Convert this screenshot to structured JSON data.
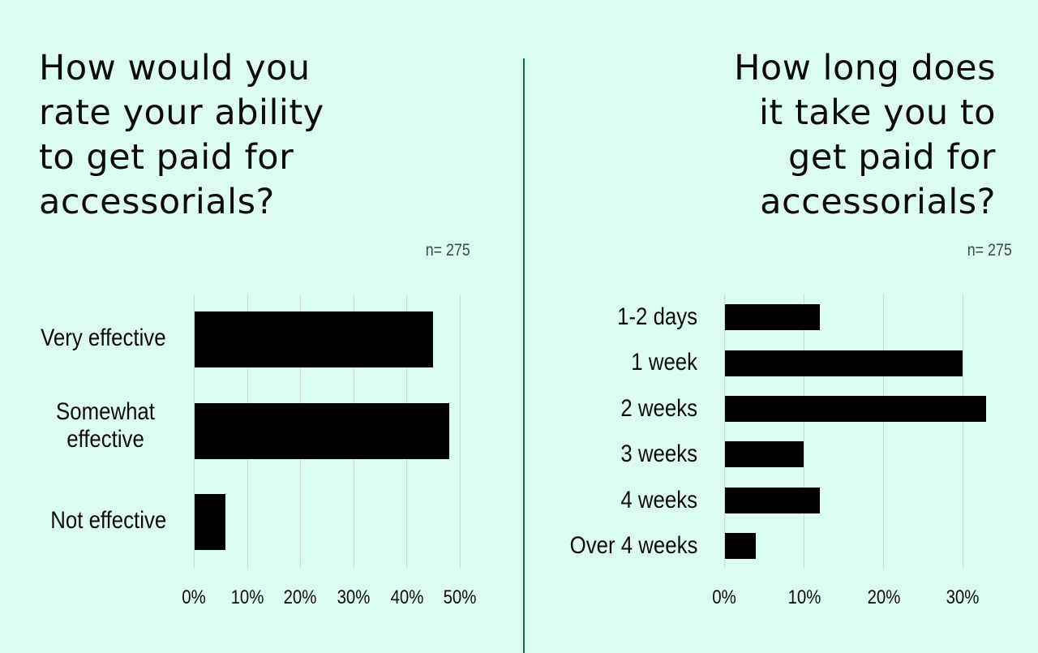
{
  "colors": {
    "background": "#dcfcf1",
    "bar": "#000000",
    "divider": "#17694c",
    "gridline": "#cdd8d4",
    "text": "#0b0b0b",
    "sample_size_text": "#3c4a45"
  },
  "left": {
    "title_lines": [
      "How would you",
      "rate your ability",
      "to get paid for",
      "accessorials?"
    ],
    "sample_size": "n= 275",
    "tick_labels": [
      "0%",
      "10%",
      "20%",
      "30%",
      "40%",
      "50%"
    ],
    "categories": [
      {
        "label": "Very effective"
      },
      {
        "label_line1": "Somewhat",
        "label_line2": "effective"
      },
      {
        "label": "Not effective"
      }
    ]
  },
  "right": {
    "title_lines": [
      "How long does",
      "it take you to",
      "get paid for",
      "accessorials?"
    ],
    "sample_size": "n= 275",
    "tick_labels": [
      "0%",
      "10%",
      "20%",
      "30%"
    ],
    "categories": [
      "1-2 days",
      "1 week",
      "2 weeks",
      "3 weeks",
      "4 weeks",
      "Over 4 weeks"
    ]
  },
  "chart_data": [
    {
      "type": "bar",
      "orientation": "horizontal",
      "title": "How would you rate your ability to get paid for accessorials?",
      "subtitle": "n= 275",
      "categories": [
        "Very effective",
        "Somewhat effective",
        "Not effective"
      ],
      "values": [
        45,
        48,
        6
      ],
      "unit": "%",
      "xlabel": "",
      "ylabel": "",
      "xlim": [
        0,
        50
      ],
      "ticks": [
        0,
        10,
        20,
        30,
        40,
        50
      ],
      "grid": true,
      "legend": "none"
    },
    {
      "type": "bar",
      "orientation": "horizontal",
      "title": "How long does it take you to get paid for accessorials?",
      "subtitle": "n= 275",
      "categories": [
        "1-2 days",
        "1 week",
        "2 weeks",
        "3 weeks",
        "4 weeks",
        "Over 4 weeks"
      ],
      "values": [
        12,
        30,
        33,
        10,
        12,
        4
      ],
      "unit": "%",
      "xlabel": "",
      "ylabel": "",
      "xlim": [
        0,
        33
      ],
      "ticks": [
        0,
        10,
        20,
        30
      ],
      "grid": true,
      "legend": "none"
    }
  ]
}
